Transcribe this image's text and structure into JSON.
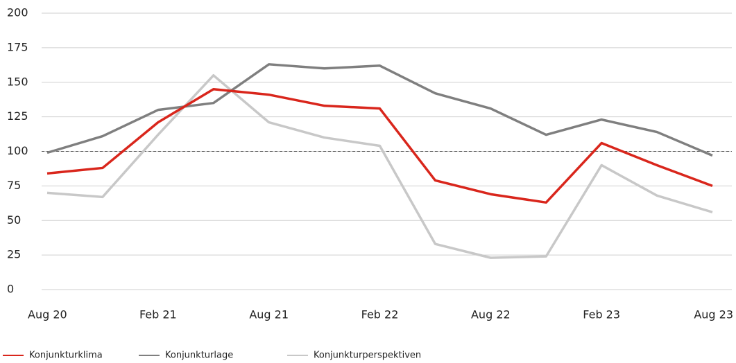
{
  "chart_data": {
    "type": "line",
    "categories": [
      "Aug 20",
      null,
      "Feb 21",
      null,
      "Aug 21",
      null,
      "Feb 22",
      null,
      "Aug 22",
      null,
      "Feb 23",
      null,
      "Aug 23"
    ],
    "series": [
      {
        "name": "Konjunkturklima",
        "color": "#d9261c",
        "values": [
          84,
          88,
          121,
          145,
          141,
          133,
          131,
          79,
          69,
          63,
          106,
          90,
          75
        ]
      },
      {
        "name": "Konjunkturlage",
        "color": "#7f7f7f",
        "values": [
          99,
          111,
          130,
          135,
          163,
          160,
          162,
          142,
          131,
          112,
          123,
          114,
          97
        ]
      },
      {
        "name": "Konjunkturperspektiven",
        "color": "#c8c8c8",
        "values": [
          70,
          67,
          112,
          155,
          121,
          110,
          104,
          33,
          23,
          24,
          90,
          68,
          56
        ]
      }
    ],
    "ylim": [
      0,
      200
    ],
    "yticks": [
      0,
      25,
      50,
      75,
      100,
      125,
      150,
      175,
      200
    ],
    "reference_line": 100,
    "grid": true,
    "legend": "bottom-left"
  }
}
